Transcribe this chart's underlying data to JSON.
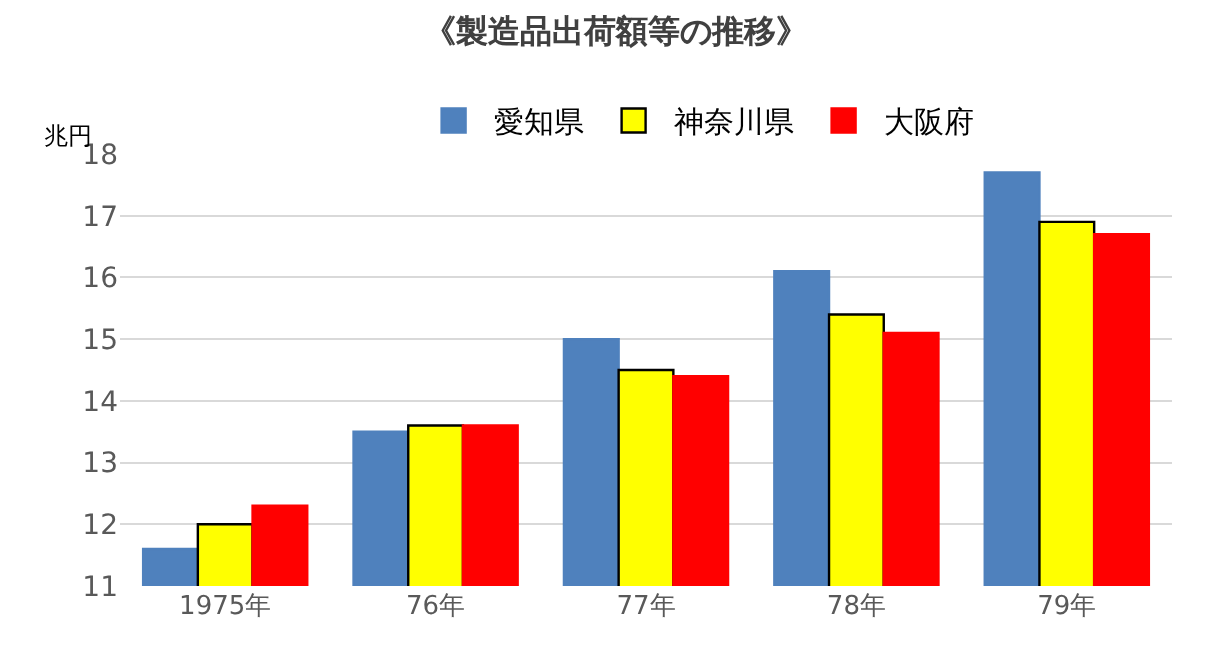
{
  "chart_data": {
    "type": "bar",
    "title": "《製造品出荷額等の推移》",
    "ylabel": "兆円",
    "categories": [
      "1975年",
      "76年",
      "77年",
      "78年",
      "79年"
    ],
    "series": [
      {
        "name": "愛知県",
        "color": "#4f81bd",
        "values": [
          11.6,
          13.5,
          15.0,
          16.1,
          17.7
        ]
      },
      {
        "name": "神奈川県",
        "color": "#ffff00",
        "values": [
          12.0,
          13.6,
          14.5,
          15.4,
          16.9
        ]
      },
      {
        "name": "大阪府",
        "color": "#ff0000",
        "values": [
          12.3,
          13.6,
          14.4,
          15.1,
          16.7
        ]
      }
    ],
    "ylim": [
      11,
      18
    ],
    "yticks": [
      11,
      12,
      13,
      14,
      15,
      16,
      17,
      18
    ],
    "grid": "y",
    "legend": "top"
  }
}
